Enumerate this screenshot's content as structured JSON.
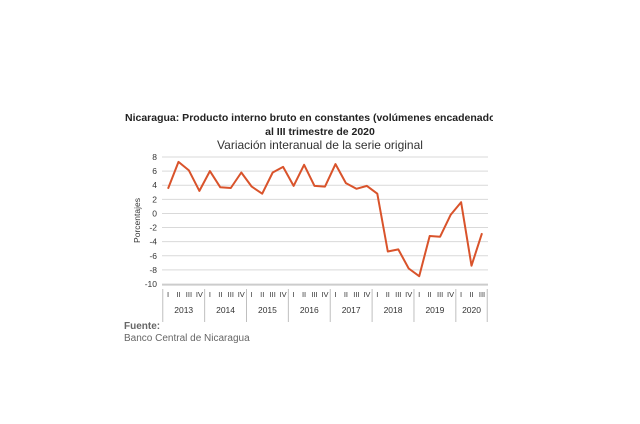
{
  "chart_data": {
    "type": "line",
    "title_line1": "Nicaragua: Producto interno bruto en constantes (volúmenes encadenados",
    "title_line2": "al III trimestre de 2020",
    "subtitle": "Variación interanual de la serie original",
    "ylabel": "Porcentajes",
    "ylim": [
      -10,
      8
    ],
    "yticks": [
      8,
      6,
      4,
      2,
      0,
      -2,
      -4,
      -6,
      -8,
      -10
    ],
    "grid": true,
    "legend": "none",
    "quarter_labels": [
      "I",
      "II",
      "III",
      "IV",
      "I",
      "II",
      "III",
      "IV",
      "I",
      "II",
      "III",
      "IV",
      "I",
      "II",
      "III",
      "IV",
      "I",
      "II",
      "III",
      "IV",
      "I",
      "II",
      "III",
      "IV",
      "I",
      "II",
      "III",
      "IV",
      "I",
      "II",
      "III"
    ],
    "years": [
      {
        "label": "2013",
        "quarters": 4
      },
      {
        "label": "2014",
        "quarters": 4
      },
      {
        "label": "2015",
        "quarters": 4
      },
      {
        "label": "2016",
        "quarters": 4
      },
      {
        "label": "2017",
        "quarters": 4
      },
      {
        "label": "2018",
        "quarters": 4
      },
      {
        "label": "2019",
        "quarters": 4
      },
      {
        "label": "2020",
        "quarters": 3
      }
    ],
    "series": [
      {
        "color": "#d9532b",
        "values": [
          3.5,
          7.3,
          6.1,
          3.2,
          6.0,
          3.7,
          3.6,
          5.8,
          3.8,
          2.8,
          5.8,
          6.6,
          3.9,
          6.9,
          3.9,
          3.8,
          7.0,
          4.3,
          3.5,
          3.9,
          2.8,
          -5.4,
          -5.1,
          -7.8,
          -8.9,
          -3.2,
          -3.3,
          -0.2,
          1.6,
          -7.4,
          -2.8
        ]
      }
    ]
  },
  "source": {
    "label": "Fuente:",
    "text": "Banco Central de Nicaragua"
  }
}
